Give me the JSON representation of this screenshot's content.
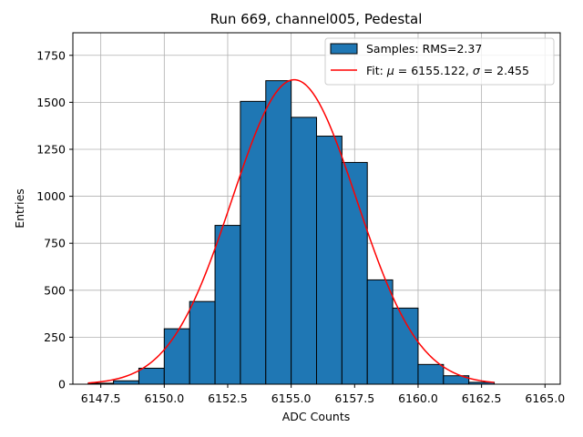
{
  "chart_data": {
    "type": "bar",
    "title": "Run 669, channel005, Pedestal",
    "xlabel": "ADC Counts",
    "ylabel": "Entries",
    "xlim": [
      6146.4,
      6165.6
    ],
    "ylim": [
      0,
      1870
    ],
    "grid": true,
    "legend_position": "top-right",
    "xticks": [
      6147.5,
      6150.0,
      6152.5,
      6155.0,
      6157.5,
      6160.0,
      6162.5,
      6165.0
    ],
    "xtick_labels": [
      "6147.5",
      "6150.0",
      "6152.5",
      "6155.0",
      "6157.5",
      "6160.0",
      "6162.5",
      "6165.0"
    ],
    "yticks": [
      0,
      250,
      500,
      750,
      1000,
      1250,
      1500,
      1750
    ],
    "ytick_labels": [
      "0",
      "250",
      "500",
      "750",
      "1000",
      "1250",
      "1500",
      "1750"
    ],
    "histogram": {
      "name": "Samples: RMS=2.37",
      "color": "#1f77b4",
      "edge_color": "#000000",
      "bin_edges": [
        6147,
        6148,
        6149,
        6150,
        6151,
        6152,
        6153,
        6154,
        6155,
        6156,
        6157,
        6158,
        6159,
        6160,
        6161,
        6162,
        6163
      ],
      "counts": [
        5,
        18,
        85,
        295,
        440,
        845,
        1505,
        1615,
        1420,
        1320,
        1180,
        555,
        405,
        105,
        45,
        10
      ]
    },
    "fit": {
      "name": "Fit: μ = 6155.122, σ = 2.455",
      "legend_prefix": "Fit: ",
      "mu_symbol": "μ",
      "mu_text": " = 6155.122, ",
      "sigma_symbol": "σ",
      "sigma_text": " = 2.455",
      "color": "#ff0000",
      "type": "gaussian",
      "mu": 6155.122,
      "sigma": 2.455,
      "amplitude": 1620,
      "x_range": [
        6147,
        6163
      ]
    }
  }
}
